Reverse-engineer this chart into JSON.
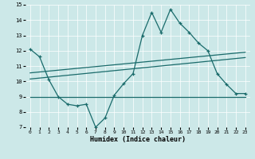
{
  "xlabel": "Humidex (Indice chaleur)",
  "xlim": [
    -0.5,
    23.5
  ],
  "ylim": [
    7,
    15
  ],
  "xticks": [
    0,
    1,
    2,
    3,
    4,
    5,
    6,
    7,
    8,
    9,
    10,
    11,
    12,
    13,
    14,
    15,
    16,
    17,
    18,
    19,
    20,
    21,
    22,
    23
  ],
  "yticks": [
    7,
    8,
    9,
    10,
    11,
    12,
    13,
    14,
    15
  ],
  "bg_color": "#cce8e8",
  "line_color": "#1a6b6b",
  "line1_x": [
    0,
    1,
    2,
    3,
    4,
    5,
    6,
    7,
    8,
    9,
    10,
    11,
    12,
    13,
    14,
    15,
    16,
    17,
    18,
    19,
    20,
    21,
    22,
    23
  ],
  "line1_y": [
    12.1,
    11.6,
    10.1,
    9.0,
    8.5,
    8.4,
    8.5,
    7.0,
    7.6,
    9.1,
    9.85,
    10.5,
    13.0,
    14.5,
    13.2,
    14.7,
    13.8,
    13.2,
    12.5,
    12.0,
    10.5,
    9.8,
    9.2,
    9.2
  ],
  "line2_x": [
    0,
    23
  ],
  "line2_y": [
    9.0,
    9.0
  ],
  "line3_x": [
    0,
    23
  ],
  "line3_y": [
    10.15,
    11.55
  ],
  "line4_x": [
    0,
    23
  ],
  "line4_y": [
    10.55,
    11.9
  ]
}
